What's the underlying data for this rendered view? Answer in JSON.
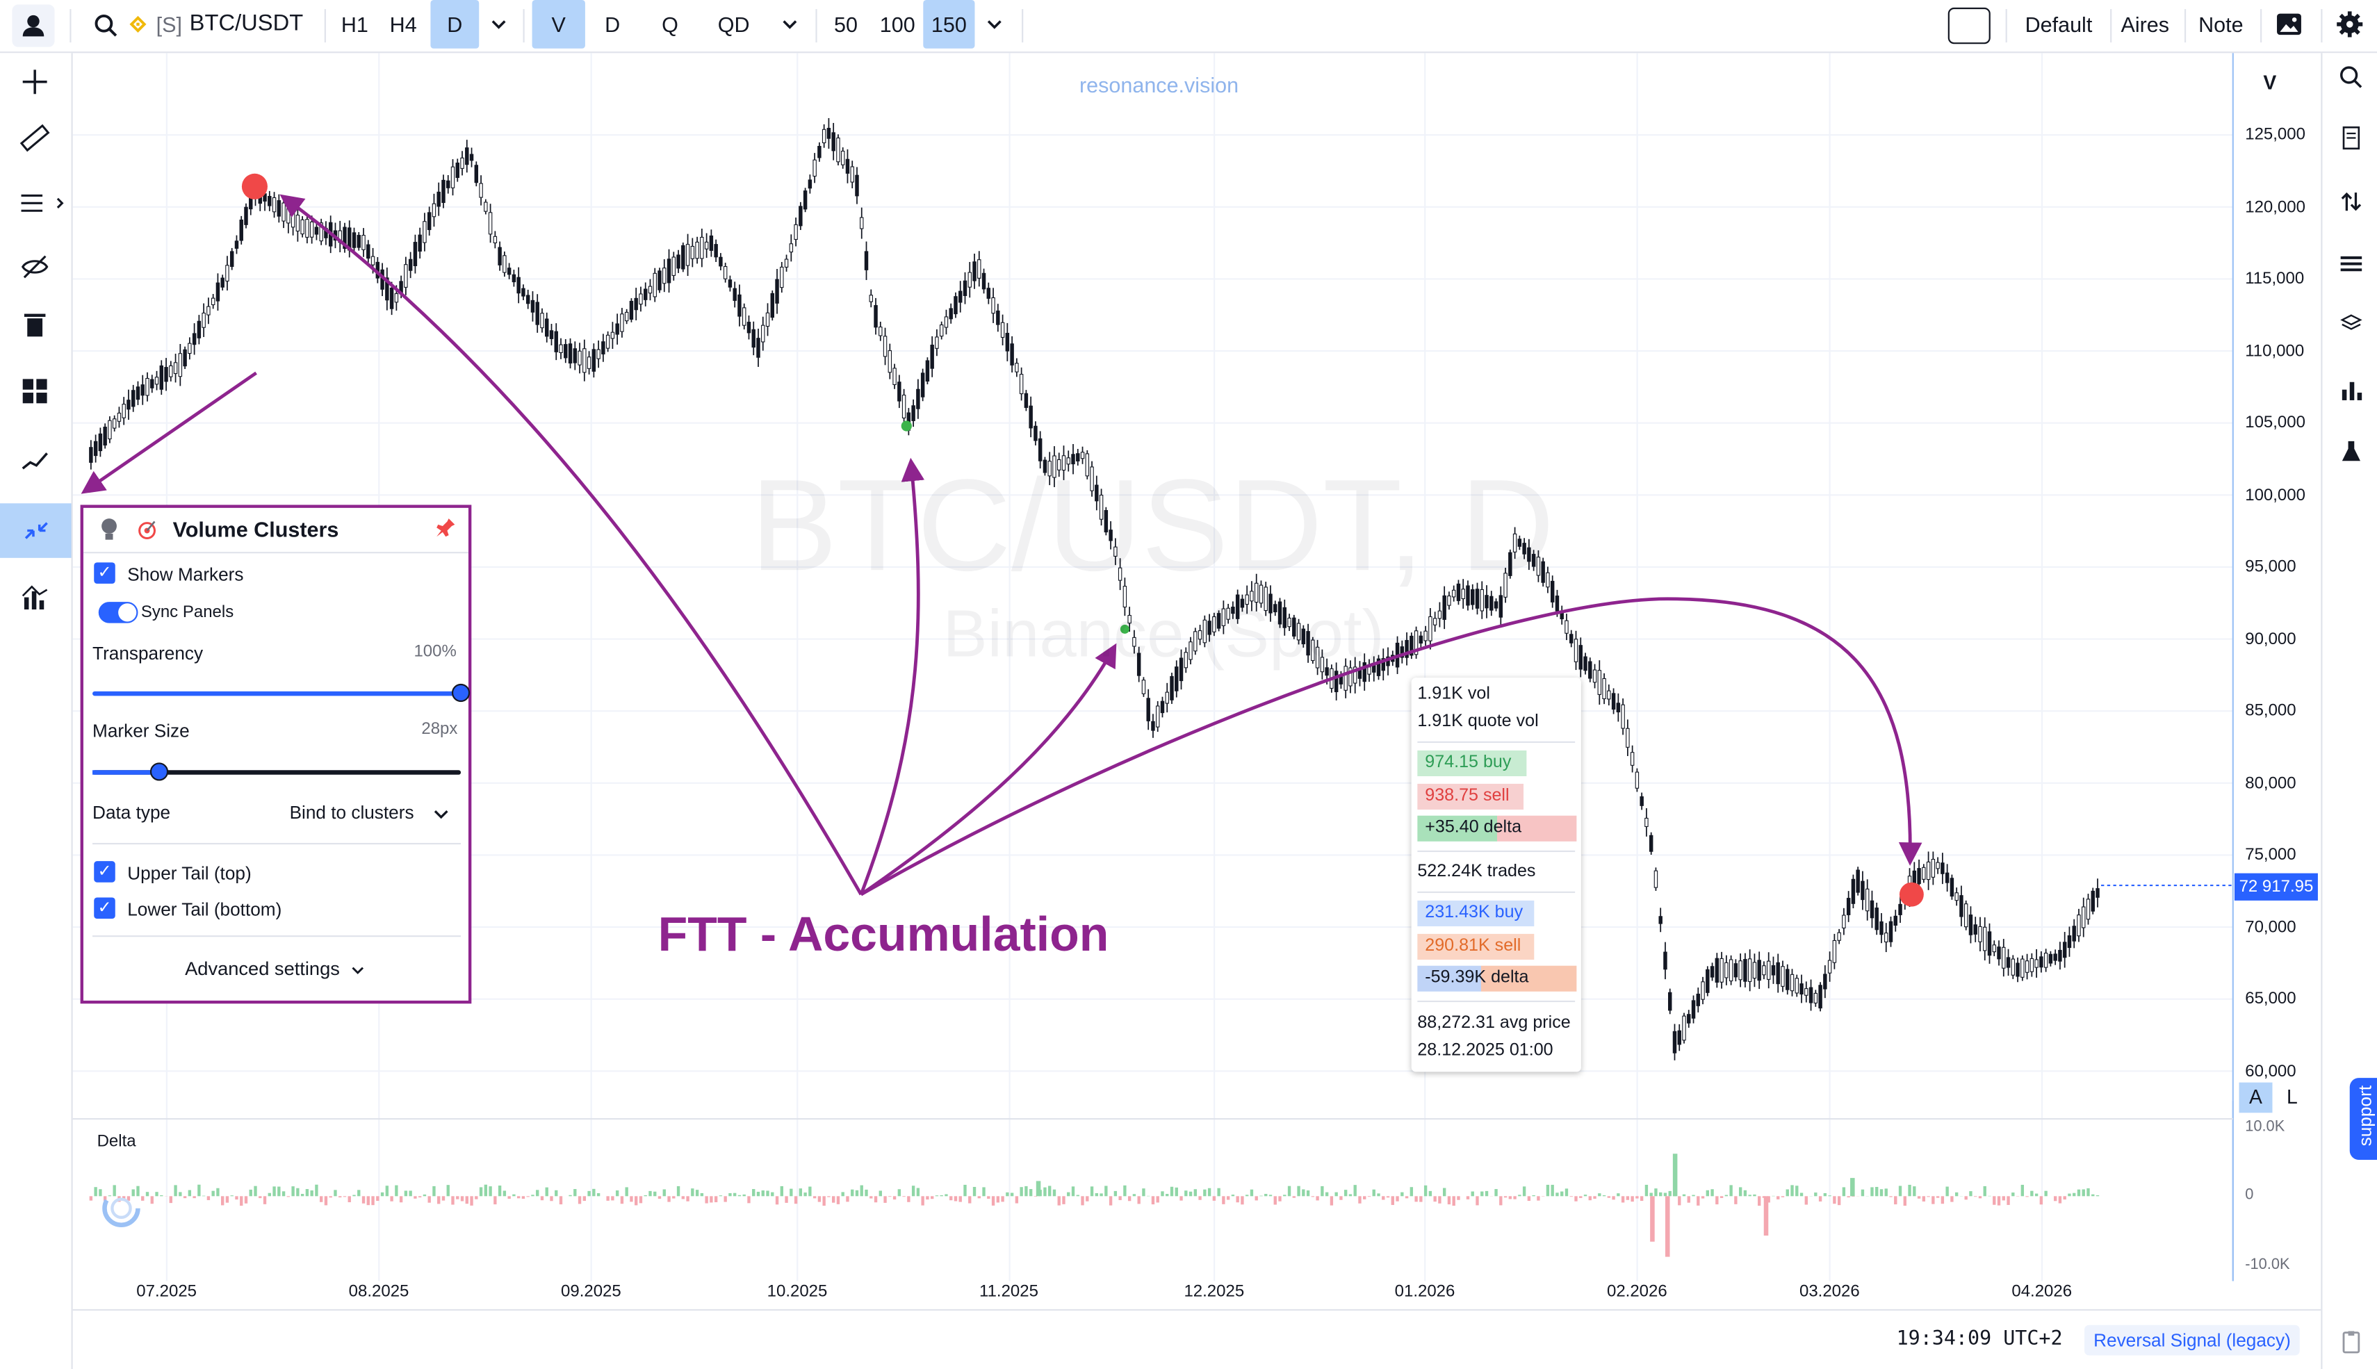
{
  "header": {
    "symbol_prefix": "[S]",
    "symbol": "BTC/USDT",
    "timeframes": [
      "H1",
      "H4",
      "D"
    ],
    "active_timeframe": "D",
    "chart_types": [
      "V",
      "D",
      "Q",
      "QD"
    ],
    "active_chart_type": "V",
    "counts": [
      "50",
      "100",
      "150"
    ],
    "active_count": "150",
    "right_buttons": [
      "Default",
      "Aires",
      "Note"
    ]
  },
  "watermark": {
    "site": "resonance.vision",
    "symbol_big": "BTC/USDT, D",
    "exchange_big": "Binance (Spot)"
  },
  "price_axis": {
    "mode_label": "V",
    "labels": [
      "125,000",
      "120,000",
      "115,000",
      "110,000",
      "105,000",
      "100,000",
      "95,000",
      "90,000",
      "85,000",
      "80,000",
      "75,000",
      "70,000",
      "65,000",
      "60,000"
    ],
    "last_price": "72 917.95",
    "auto_btn": "A",
    "log_btn": "L"
  },
  "date_axis": {
    "labels": [
      "07.2025",
      "08.2025",
      "09.2025",
      "10.2025",
      "11.2025",
      "12.2025",
      "01.2026",
      "02.2026",
      "03.2026",
      "04.2026"
    ]
  },
  "delta_panel": {
    "title": "Delta",
    "ticks": [
      "10.0K",
      "0",
      "-10.0K"
    ]
  },
  "volume_clusters_panel": {
    "title": "Volume Clusters",
    "show_markers": "Show Markers",
    "sync_panels": "Sync Panels",
    "transparency_label": "Transparency",
    "transparency_value": "100%",
    "transparency_level": 1.0,
    "marker_size_label": "Marker Size",
    "marker_size_value": "28px",
    "marker_size_level": 0.18,
    "data_type_label": "Data type",
    "data_type_value": "Bind to clusters",
    "upper_tail": "Upper Tail (top)",
    "lower_tail": "Lower Tail (bottom)",
    "advanced": "Advanced settings"
  },
  "tooltip": {
    "vol": "1.91K vol",
    "quote_vol": "1.91K quote vol",
    "buy1": "974.15 buy",
    "sell1": "938.75 sell",
    "delta1": "+35.40 delta",
    "trades": "522.24K trades",
    "buy2": "231.43K buy",
    "sell2": "290.81K sell",
    "delta2": "-59.39K delta",
    "avg_price": "88,272.31 avg price",
    "datetime": "28.12.2025 01:00"
  },
  "annotation": {
    "text": "FTT - Accumulation"
  },
  "footer": {
    "clock": "19:34:09 UTC+2",
    "signal": "Reversal Signal (legacy)",
    "support": "support"
  },
  "colors": {
    "accent": "#2962ff",
    "annotation": "#8e248e",
    "marker_red": "#f04848",
    "marker_green": "#3cb44b",
    "delta_pos": "#8fd6a6",
    "delta_neg": "#f4a7b0"
  }
}
